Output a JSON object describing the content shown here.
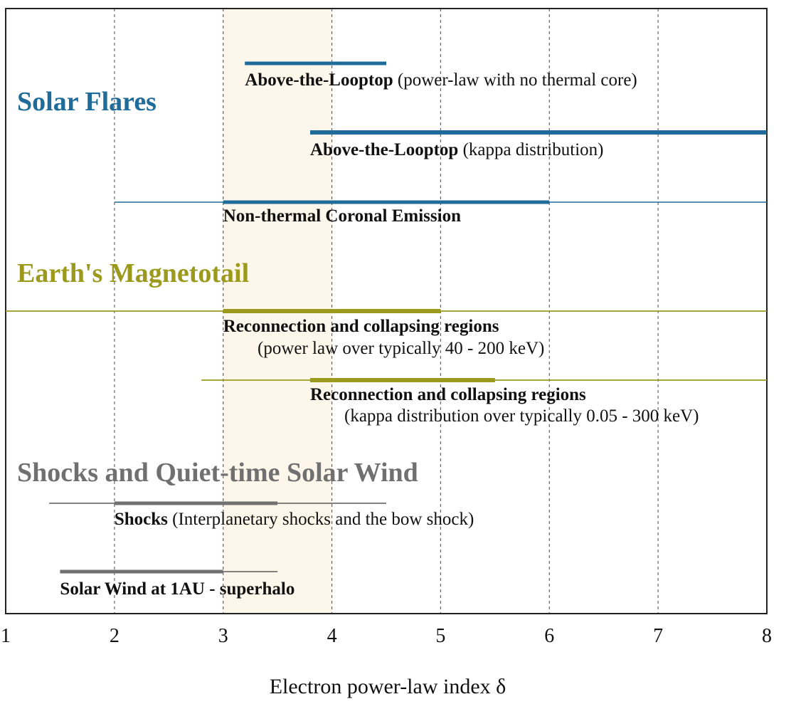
{
  "chart_data": {
    "type": "range",
    "xlabel": "Electron power-law index δ",
    "xlim": [
      1,
      8
    ],
    "xticks": [
      "1",
      "2",
      "3",
      "4",
      "5",
      "6",
      "7",
      "8"
    ],
    "grid": "vertical dashed",
    "highlight_band": [
      3,
      4
    ],
    "groups": [
      {
        "title": "Solar Flares",
        "color": "#1f6b9a",
        "entries": [
          {
            "label_bold": "Above-the-Looptop",
            "label_rest": " (power-law with no thermal core)",
            "line2": "",
            "range": [
              3.2,
              4.5
            ],
            "core": [
              3.2,
              4.5
            ]
          },
          {
            "label_bold": "Above-the-Looptop",
            "label_rest": " (kappa distribution)",
            "line2": "",
            "range": [
              3.8,
              8
            ],
            "core": [
              3.8,
              8
            ]
          },
          {
            "label_bold": "Non-thermal Coronal Emission",
            "label_rest": "",
            "line2": "",
            "range": [
              2,
              8
            ],
            "core": [
              3,
              6
            ]
          }
        ]
      },
      {
        "title": "Earth's Magnetotail",
        "color": "#9b9a1c",
        "entries": [
          {
            "label_bold": "Reconnection and collapsing regions",
            "label_rest": "",
            "line2": "(power law over typically 40 - 200 keV)",
            "range": [
              1,
              8
            ],
            "core": [
              3,
              5
            ]
          },
          {
            "label_bold": "Reconnection and collapsing regions",
            "label_rest": "",
            "line2": "(kappa distribution over typically 0.05 - 300 keV)",
            "range": [
              2.8,
              8
            ],
            "core": [
              3.8,
              5.5
            ]
          }
        ]
      },
      {
        "title": "Shocks and Quiet-time Solar Wind",
        "color": "#707070",
        "entries": [
          {
            "label_bold": "Shocks",
            "label_rest": " (Interplanetary shocks and the bow shock)",
            "line2": "",
            "range": [
              1.4,
              4.5
            ],
            "core": [
              2,
              3.5
            ]
          },
          {
            "label_bold": "Solar Wind at 1AU - superhalo",
            "label_rest": "",
            "line2": "",
            "range": [
              1.5,
              3.5
            ],
            "core": [
              1.5,
              3
            ]
          }
        ]
      }
    ]
  }
}
